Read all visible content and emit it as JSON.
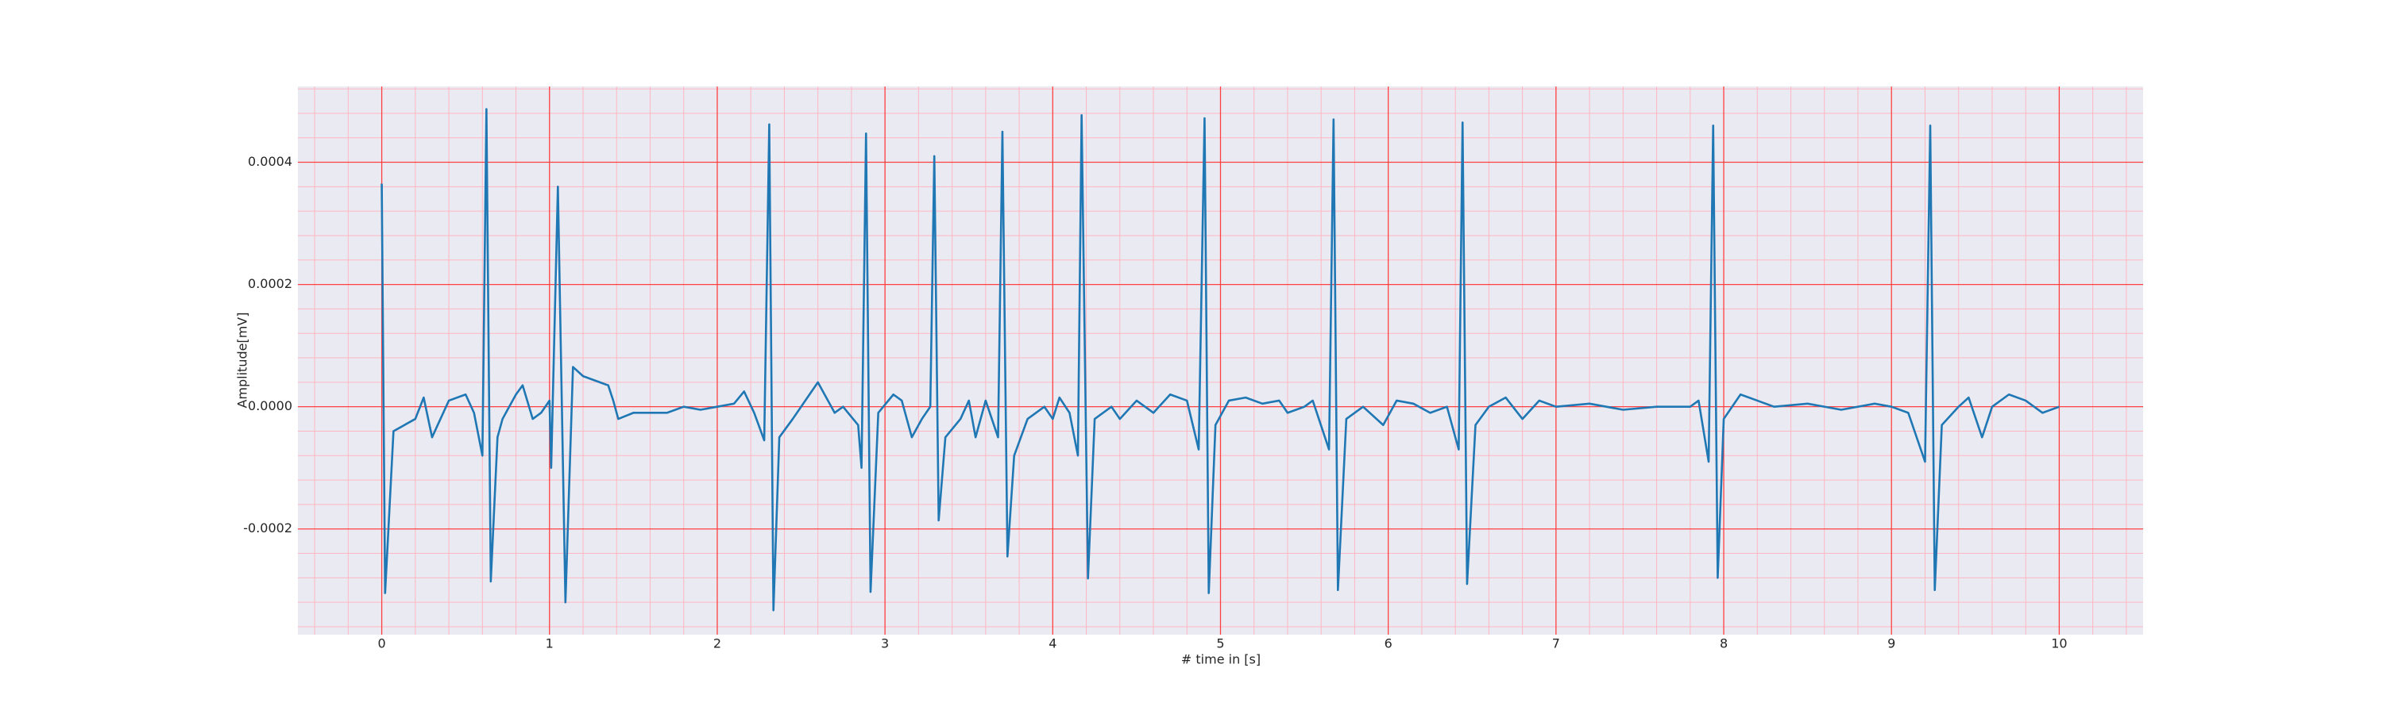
{
  "chart_data": {
    "type": "line",
    "xlabel": "# time in [s]",
    "ylabel": "Amplitude[mV]",
    "color": "#1f77b4",
    "grid": true,
    "minor_grid": true,
    "xlim": [
      -0.5,
      10.5
    ],
    "ylim": [
      -0.000373,
      0.000524
    ],
    "xticks": [
      0,
      1,
      2,
      3,
      4,
      5,
      6,
      7,
      8,
      9,
      10
    ],
    "yticks": [
      {
        "value": -0.0002,
        "label": "-0.0002"
      },
      {
        "value": 0,
        "label": "0.0000"
      },
      {
        "value": 0.0002,
        "label": "0.0002"
      },
      {
        "value": 0.0004,
        "label": "0.0004"
      }
    ],
    "x": [
      0,
      0.02,
      0.07,
      0.2,
      0.25,
      0.3,
      0.4,
      0.5,
      0.55,
      0.6,
      0.624,
      0.65,
      0.69,
      0.72,
      0.8,
      0.84,
      0.9,
      0.95,
      1.0,
      1.01,
      1.05,
      1.095,
      1.14,
      1.2,
      1.3,
      1.35,
      1.38,
      1.41,
      1.5,
      1.7,
      1.8,
      1.9,
      2.0,
      2.1,
      2.16,
      2.22,
      2.28,
      2.31,
      2.335,
      2.37,
      2.45,
      2.55,
      2.6,
      2.65,
      2.7,
      2.75,
      2.84,
      2.86,
      2.887,
      2.914,
      2.96,
      3.05,
      3.1,
      3.16,
      3.22,
      3.27,
      3.294,
      3.32,
      3.36,
      3.45,
      3.5,
      3.54,
      3.6,
      3.674,
      3.7,
      3.73,
      3.77,
      3.85,
      3.95,
      4.0,
      4.04,
      4.1,
      4.15,
      4.172,
      4.21,
      4.25,
      4.35,
      4.4,
      4.5,
      4.6,
      4.7,
      4.8,
      4.87,
      4.905,
      4.93,
      4.97,
      5.05,
      5.15,
      5.25,
      5.35,
      5.4,
      5.5,
      5.55,
      5.647,
      5.674,
      5.7,
      5.75,
      5.85,
      5.97,
      6.05,
      6.15,
      6.25,
      6.35,
      6.42,
      6.443,
      6.47,
      6.52,
      6.6,
      6.7,
      6.8,
      6.9,
      7.0,
      7.2,
      7.4,
      7.6,
      7.8,
      7.85,
      7.91,
      7.937,
      7.964,
      8.0,
      8.1,
      8.2,
      8.3,
      8.5,
      8.7,
      8.9,
      9.0,
      9.1,
      9.2,
      9.231,
      9.258,
      9.3,
      9.4,
      9.46,
      9.54,
      9.6,
      9.7,
      9.8,
      9.9,
      10.0
    ],
    "values": [
      0.000365,
      -0.000305,
      -4e-05,
      -2e-05,
      1.5e-05,
      -5e-05,
      1e-05,
      2e-05,
      -1e-05,
      -8e-05,
      0.000487,
      -0.000286,
      -5e-05,
      -2e-05,
      2e-05,
      3.5e-05,
      -2e-05,
      -1e-05,
      1e-05,
      -0.0001,
      0.00036,
      -0.00032,
      6.5e-05,
      5e-05,
      4e-05,
      3.5e-05,
      1e-05,
      -2e-05,
      -1e-05,
      -1e-05,
      0.0,
      -5e-06,
      0.0,
      5e-06,
      2.5e-05,
      -1e-05,
      -5.5e-05,
      0.000462,
      -0.000333,
      -5e-05,
      -2e-05,
      2e-05,
      4e-05,
      1.5e-05,
      -1e-05,
      0.0,
      -3e-05,
      -0.0001,
      0.000447,
      -0.000303,
      -1e-05,
      2e-05,
      1e-05,
      -5e-05,
      -2e-05,
      0.0,
      0.00041,
      -0.000186,
      -5e-05,
      -2e-05,
      1e-05,
      -5e-05,
      1e-05,
      -5e-05,
      0.00045,
      -0.000245,
      -8e-05,
      -2e-05,
      0.0,
      -2e-05,
      1.5e-05,
      -1e-05,
      -8e-05,
      0.000477,
      -0.000281,
      -2e-05,
      0.0,
      -2e-05,
      1e-05,
      -1e-05,
      2e-05,
      1e-05,
      -7e-05,
      0.000472,
      -0.000305,
      -3e-05,
      1e-05,
      1.5e-05,
      5e-06,
      1e-05,
      -1e-05,
      0.0,
      1e-05,
      -7e-05,
      0.00047,
      -0.0003,
      -2e-05,
      0.0,
      -3e-05,
      1e-05,
      5e-06,
      -1e-05,
      0.0,
      -7e-05,
      0.000465,
      -0.00029,
      -3e-05,
      0.0,
      1.5e-05,
      -2e-05,
      1e-05,
      0.0,
      5e-06,
      -5e-06,
      0.0,
      0.0,
      1e-05,
      -9e-05,
      0.00046,
      -0.00028,
      -2e-05,
      2e-05,
      1e-05,
      0.0,
      5e-06,
      -5e-06,
      5e-06,
      0.0,
      -1e-05,
      -9e-05,
      0.00046,
      -0.0003,
      -3e-05,
      0.0,
      1.5e-05,
      -5e-05,
      0.0,
      2e-05,
      1e-05,
      -1e-05,
      0.0
    ]
  }
}
